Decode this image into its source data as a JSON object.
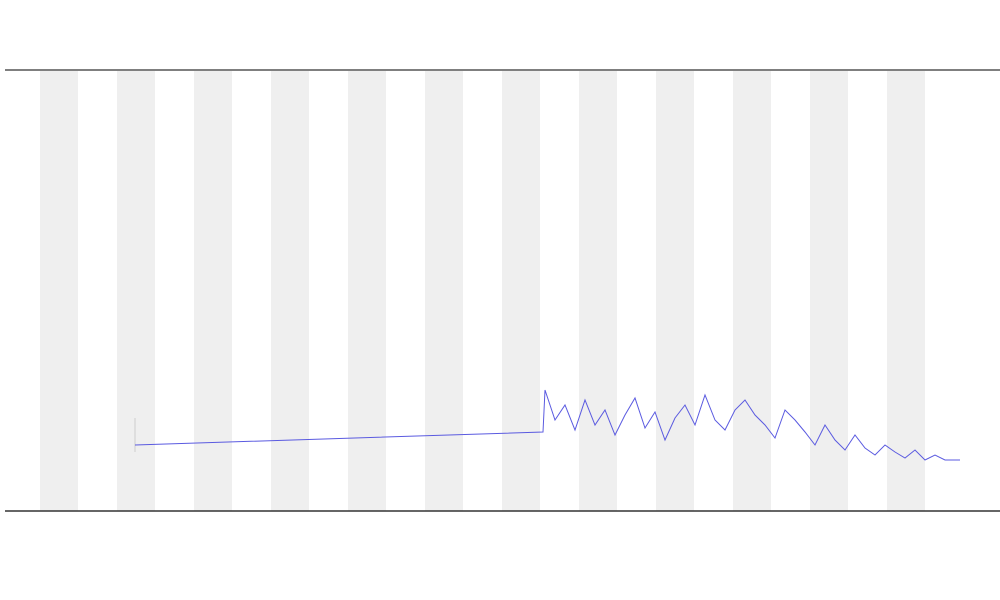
{
  "chart_data": {
    "type": "line",
    "series": [
      {
        "color": "#5a5ae0",
        "x": [
          135,
          543,
          545,
          555,
          565,
          575,
          585,
          595,
          605,
          615,
          625,
          635,
          645,
          655,
          665,
          675,
          685,
          695,
          705,
          715,
          725,
          735,
          745,
          755,
          765,
          775,
          785,
          795,
          805,
          815,
          825,
          835,
          845,
          855,
          865,
          875,
          885,
          895,
          905,
          915,
          925,
          935,
          945,
          960
        ],
        "values": [
          66,
          79,
          121,
          91,
          106,
          81,
          111,
          86,
          101,
          76,
          96,
          113,
          83,
          99,
          71,
          93,
          106,
          86,
          116,
          91,
          81,
          101,
          111,
          96,
          86,
          73,
          101,
          91,
          79,
          66,
          86,
          71,
          61,
          76,
          63,
          56,
          66,
          59,
          53,
          61,
          51,
          56,
          51,
          51
        ]
      }
    ],
    "xlim": [
      5,
      1000
    ],
    "ylim": [
      0,
      441
    ]
  }
}
